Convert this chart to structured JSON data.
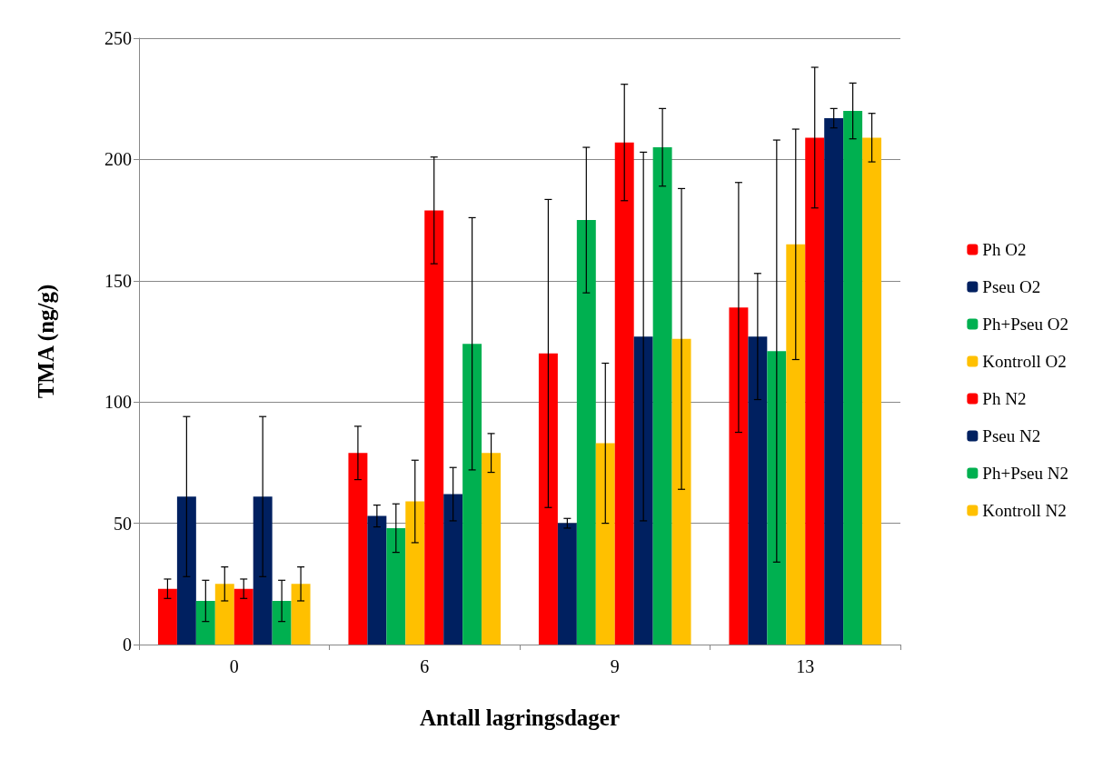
{
  "chart_data": {
    "type": "bar",
    "xlabel": "Antall lagringsdager",
    "ylabel": "TMA (ng/g)",
    "categories": [
      "0",
      "6",
      "9",
      "13"
    ],
    "series": [
      {
        "name": "Ph O2",
        "color": "#ff0000",
        "values": [
          23,
          79,
          120,
          139
        ],
        "errors": [
          4,
          11,
          63.5,
          51.5
        ]
      },
      {
        "name": "Pseu O2",
        "color": "#002060",
        "values": [
          61,
          53,
          50,
          127
        ],
        "errors": [
          33,
          4.5,
          2,
          26
        ]
      },
      {
        "name": "Ph+Pseu O2",
        "color": "#00b050",
        "values": [
          18,
          48,
          175,
          121
        ],
        "errors": [
          8.5,
          10,
          30,
          87
        ]
      },
      {
        "name": "Kontroll O2",
        "color": "#ffc000",
        "values": [
          25,
          59,
          83,
          165
        ],
        "errors": [
          7,
          17,
          33,
          47.5
        ]
      },
      {
        "name": "Ph N2",
        "color": "#ff0000",
        "values": [
          23,
          179,
          207,
          209
        ],
        "errors": [
          4,
          22,
          24,
          29
        ]
      },
      {
        "name": "Pseu N2",
        "color": "#002060",
        "values": [
          61,
          62,
          127,
          217
        ],
        "errors": [
          33,
          11,
          76,
          4
        ]
      },
      {
        "name": "Ph+Pseu N2",
        "color": "#00b050",
        "values": [
          18,
          124,
          205,
          220
        ],
        "errors": [
          8.5,
          52,
          16,
          11.5
        ]
      },
      {
        "name": "Kontroll N2",
        "color": "#ffc000",
        "values": [
          25,
          79,
          126,
          209
        ],
        "errors": [
          7,
          8,
          62,
          10
        ]
      }
    ],
    "ylim": [
      0,
      250
    ],
    "yticks": [
      0,
      50,
      100,
      150,
      200,
      250
    ],
    "grid": "y",
    "legend": "right"
  }
}
